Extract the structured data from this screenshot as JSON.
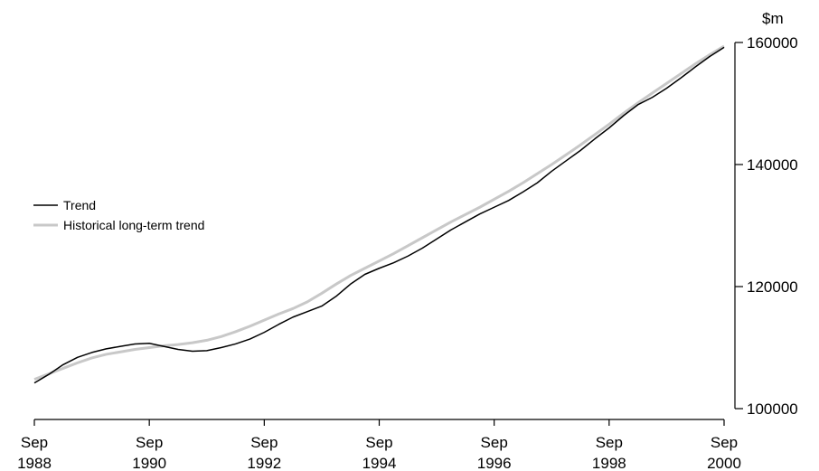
{
  "chart_data": {
    "type": "line",
    "title": "",
    "xlabel": "",
    "ylabel": "$m",
    "xlim": [
      1988.667,
      2000.667
    ],
    "ylim": [
      100000,
      160000
    ],
    "y_axis_side": "right",
    "yticks": [
      100000,
      120000,
      140000,
      160000
    ],
    "ytick_labels": [
      "100000",
      "120000",
      "140000",
      "160000"
    ],
    "xticks": [
      1988.667,
      1990.667,
      1992.667,
      1994.667,
      1996.667,
      1998.667,
      2000.667
    ],
    "xtick_labels": [
      {
        "month": "Sep",
        "year": "1988"
      },
      {
        "month": "Sep",
        "year": "1990"
      },
      {
        "month": "Sep",
        "year": "1992"
      },
      {
        "month": "Sep",
        "year": "1994"
      },
      {
        "month": "Sep",
        "year": "1996"
      },
      {
        "month": "Sep",
        "year": "1998"
      },
      {
        "month": "Sep",
        "year": "2000"
      }
    ],
    "grid": false,
    "legend_position": "left-middle",
    "x": [
      1988.667,
      1988.917,
      1989.167,
      1989.417,
      1989.667,
      1989.917,
      1990.167,
      1990.417,
      1990.667,
      1990.917,
      1991.167,
      1991.417,
      1991.667,
      1991.917,
      1992.167,
      1992.417,
      1992.667,
      1992.917,
      1993.167,
      1993.417,
      1993.667,
      1993.917,
      1994.167,
      1994.417,
      1994.667,
      1994.917,
      1995.167,
      1995.417,
      1995.667,
      1995.917,
      1996.167,
      1996.417,
      1996.667,
      1996.917,
      1997.167,
      1997.417,
      1997.667,
      1997.917,
      1998.167,
      1998.417,
      1998.667,
      1998.917,
      1999.167,
      1999.417,
      1999.667,
      1999.917,
      2000.167,
      2000.417,
      2000.667
    ],
    "series": [
      {
        "name": "Trend",
        "color": "#000000",
        "values": [
          104200,
          105600,
          107200,
          108400,
          109200,
          109800,
          110200,
          110600,
          110700,
          110200,
          109700,
          109400,
          109500,
          110000,
          110600,
          111400,
          112500,
          113800,
          115000,
          115900,
          116800,
          118400,
          120400,
          122000,
          123000,
          123900,
          125000,
          126300,
          127800,
          129300,
          130600,
          131900,
          133000,
          134100,
          135500,
          137000,
          138900,
          140600,
          142300,
          144200,
          146000,
          148000,
          149800,
          151000,
          152500,
          154200,
          156000,
          157700,
          159200
        ]
      },
      {
        "name": "Historical long-term trend",
        "color": "#c8c8c8",
        "values": [
          104800,
          105700,
          106600,
          107500,
          108300,
          108900,
          109300,
          109700,
          110000,
          110300,
          110500,
          110800,
          111200,
          111800,
          112600,
          113500,
          114500,
          115500,
          116400,
          117500,
          118900,
          120400,
          121800,
          123000,
          124200,
          125400,
          126700,
          128000,
          129300,
          130600,
          131800,
          133000,
          134300,
          135600,
          137000,
          138500,
          140000,
          141600,
          143200,
          144900,
          146600,
          148400,
          150100,
          151700,
          153300,
          154900,
          156500,
          158000,
          159400
        ]
      }
    ]
  }
}
